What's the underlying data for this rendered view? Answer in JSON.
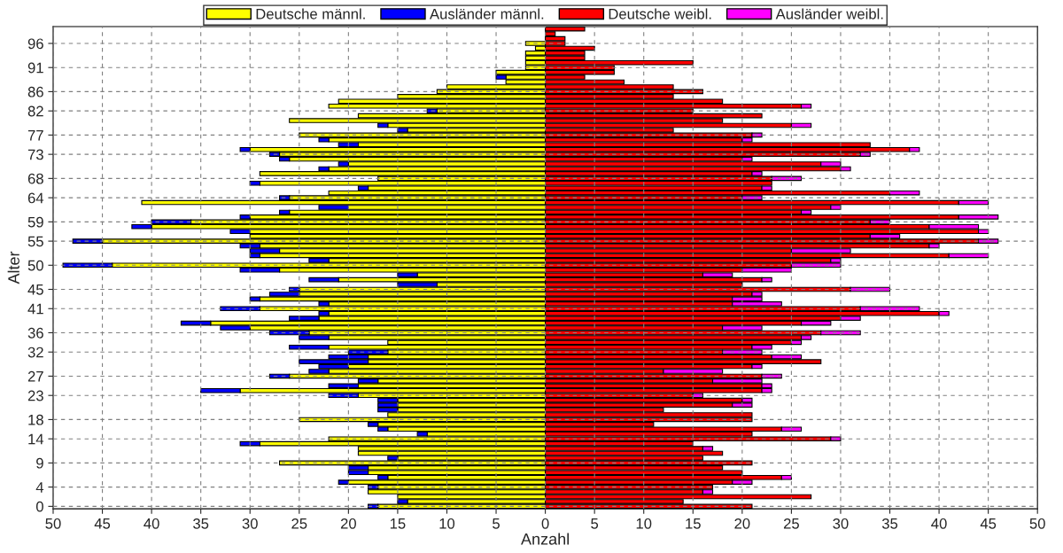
{
  "chart_data": {
    "type": "bar",
    "orientation": "horizontal",
    "stacked": true,
    "xlabel": "Anzahl",
    "ylabel": "Alter",
    "categories": [
      null,
      null,
      null,
      "96",
      null,
      null,
      null,
      null,
      "91",
      null,
      null,
      null,
      null,
      "86",
      null,
      null,
      null,
      "82",
      null,
      null,
      null,
      null,
      "77",
      null,
      null,
      null,
      "73",
      null,
      null,
      null,
      null,
      "68",
      null,
      null,
      null,
      "64",
      null,
      null,
      null,
      null,
      "59",
      null,
      null,
      null,
      "55",
      null,
      null,
      null,
      null,
      "50",
      null,
      null,
      null,
      null,
      "45",
      null,
      null,
      null,
      "41",
      null,
      null,
      null,
      null,
      "36",
      null,
      null,
      null,
      "32",
      null,
      null,
      null,
      null,
      "27",
      null,
      null,
      null,
      "23",
      null,
      null,
      null,
      null,
      "18",
      null,
      null,
      null,
      "14",
      null,
      null,
      null,
      null,
      "9",
      null,
      null,
      null,
      null,
      "4",
      null,
      null,
      null,
      "0"
    ],
    "series": [
      {
        "name": "Deutsche männl.",
        "color": "#ffff00",
        "values": [
          0,
          0,
          0,
          -2,
          -1,
          -2,
          -2,
          -2,
          -2,
          -5,
          -4,
          -4,
          -10,
          -11,
          -15,
          -21,
          -22,
          -11,
          -19,
          -26,
          -16,
          -14,
          -25,
          -22,
          -19,
          -30,
          -27,
          -26,
          -20,
          -22,
          -29,
          -17,
          -29,
          -18,
          -22,
          -26,
          -41,
          -20,
          -26,
          -30,
          -36,
          -40,
          -30,
          -30,
          -45,
          -29,
          -27,
          -29,
          -22,
          -44,
          -27,
          -13,
          -21,
          -11,
          -25,
          -25,
          -29,
          -22,
          -29,
          -22,
          -23,
          -34,
          -30,
          -24,
          -22,
          -16,
          -22,
          -16,
          -18,
          -18,
          -20,
          -22,
          -26,
          -17,
          -19,
          -31,
          -19,
          -15,
          -15,
          -15,
          -16,
          -25,
          -17,
          -16,
          -12,
          -22,
          -29,
          -19,
          -19,
          -15,
          -27,
          -18,
          -18,
          -16,
          -20,
          -17,
          -18,
          -15,
          -14,
          -17
        ]
      },
      {
        "name": "Ausländer männl.",
        "color": "#0000ff",
        "values": [
          0,
          0,
          0,
          0,
          0,
          0,
          0,
          0,
          0,
          0,
          -1,
          0,
          0,
          0,
          0,
          0,
          0,
          -1,
          0,
          0,
          -1,
          -1,
          0,
          -1,
          -2,
          -1,
          -1,
          -1,
          -1,
          -1,
          0,
          0,
          -1,
          -1,
          0,
          -1,
          0,
          -3,
          -1,
          -1,
          -4,
          -2,
          -2,
          0,
          -3,
          -2,
          -3,
          -1,
          -2,
          -5,
          -4,
          -2,
          -3,
          -4,
          -1,
          -3,
          -1,
          -1,
          -4,
          -1,
          -3,
          -3,
          -3,
          -4,
          -3,
          0,
          -4,
          -4,
          -4,
          -7,
          -3,
          -2,
          -2,
          -2,
          -3,
          -4,
          -3,
          -2,
          -2,
          -2,
          0,
          0,
          -1,
          -1,
          -1,
          0,
          -2,
          0,
          0,
          -1,
          0,
          -2,
          -2,
          -1,
          -1,
          -1,
          0,
          0,
          -1,
          -1
        ]
      },
      {
        "name": "Deutsche weibl.",
        "color": "#ff0000",
        "values": [
          4,
          1,
          2,
          2,
          5,
          4,
          4,
          15,
          7,
          7,
          4,
          8,
          13,
          16,
          13,
          18,
          26,
          15,
          22,
          18,
          25,
          13,
          21,
          20,
          33,
          37,
          32,
          20,
          28,
          30,
          21,
          23,
          23,
          22,
          35,
          20,
          42,
          29,
          26,
          42,
          33,
          39,
          44,
          33,
          44,
          39,
          25,
          41,
          29,
          25,
          20,
          16,
          22,
          20,
          31,
          21,
          19,
          19,
          32,
          40,
          30,
          26,
          18,
          28,
          26,
          25,
          21,
          18,
          23,
          28,
          21,
          12,
          22,
          17,
          22,
          22,
          15,
          20,
          19,
          12,
          21,
          21,
          11,
          24,
          21,
          29,
          15,
          16,
          18,
          16,
          21,
          18,
          20,
          24,
          19,
          17,
          16,
          27,
          14,
          21
        ]
      },
      {
        "name": "Ausländer weibl.",
        "color": "#ff00ff",
        "values": [
          0,
          0,
          0,
          0,
          0,
          0,
          0,
          0,
          0,
          0,
          0,
          0,
          0,
          0,
          0,
          0,
          1,
          0,
          0,
          0,
          2,
          0,
          1,
          1,
          0,
          1,
          1,
          1,
          2,
          1,
          1,
          3,
          0,
          1,
          3,
          2,
          3,
          1,
          1,
          4,
          2,
          5,
          1,
          3,
          2,
          1,
          6,
          4,
          1,
          5,
          5,
          3,
          1,
          0,
          4,
          1,
          3,
          5,
          6,
          1,
          2,
          3,
          4,
          4,
          1,
          1,
          2,
          4,
          3,
          0,
          1,
          6,
          2,
          5,
          1,
          1,
          1,
          1,
          2,
          0,
          0,
          0,
          0,
          2,
          0,
          1,
          0,
          1,
          0,
          0,
          0,
          0,
          0,
          1,
          2,
          0,
          1,
          0,
          0,
          0
        ]
      }
    ],
    "xlim": [
      -50,
      50
    ],
    "xticks": [
      {
        "value": -50,
        "label": "50"
      },
      {
        "value": -45,
        "label": "45"
      },
      {
        "value": -40,
        "label": "40"
      },
      {
        "value": -35,
        "label": "35"
      },
      {
        "value": -30,
        "label": "30"
      },
      {
        "value": -25,
        "label": "25"
      },
      {
        "value": -20,
        "label": "20"
      },
      {
        "value": -15,
        "label": "15"
      },
      {
        "value": -10,
        "label": "10"
      },
      {
        "value": -5,
        "label": "5"
      },
      0,
      5,
      10,
      15,
      20,
      25,
      30,
      35,
      40,
      45,
      50
    ],
    "grid": true,
    "legend": "top"
  }
}
